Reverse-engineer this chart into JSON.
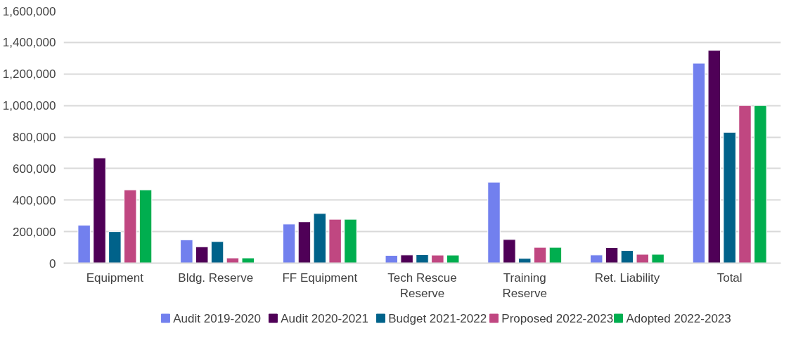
{
  "chart_data": {
    "type": "bar",
    "categories": [
      "Equipment",
      "Bldg.  Reserve",
      "FF Equipment",
      "Tech Rescue Reserve",
      "Training Reserve",
      "Ret. Liability",
      "Total"
    ],
    "series": [
      {
        "name": "Audit 2019-2020",
        "color": "#7280ee",
        "values": [
          241000,
          148000,
          248000,
          49000,
          514000,
          52000,
          1268000
        ]
      },
      {
        "name": "Audit 2020-2021",
        "color": "#4f0057",
        "values": [
          667000,
          104000,
          262000,
          52000,
          150000,
          98000,
          1350000
        ]
      },
      {
        "name": "Budget 2021-2022",
        "color": "#00628a",
        "values": [
          200000,
          137000,
          315000,
          54000,
          30000,
          80000,
          830000
        ]
      },
      {
        "name": "Proposed 2022-2023",
        "color": "#c04781",
        "values": [
          465000,
          33000,
          278000,
          51000,
          100000,
          56000,
          1000000
        ]
      },
      {
        "name": "Adopted 2022-2023",
        "color": "#00ae4f",
        "values": [
          465000,
          33000,
          278000,
          51000,
          100000,
          56000,
          1000000
        ]
      }
    ],
    "ylim": [
      0,
      1600000
    ],
    "yticks": [
      {
        "value": 0,
        "label": "0"
      },
      {
        "value": 200000,
        "label": "200,000"
      },
      {
        "value": 400000,
        "label": "400,000"
      },
      {
        "value": 600000,
        "label": "600,000"
      },
      {
        "value": 800000,
        "label": "800,000"
      },
      {
        "value": 1000000,
        "label": "1,000,000"
      },
      {
        "value": 1200000,
        "label": "1,200,000"
      },
      {
        "value": 1400000,
        "label": "1,400,000"
      },
      {
        "value": 1600000,
        "label": "1,600,000"
      }
    ],
    "grid": "y",
    "legend": "bottom"
  }
}
